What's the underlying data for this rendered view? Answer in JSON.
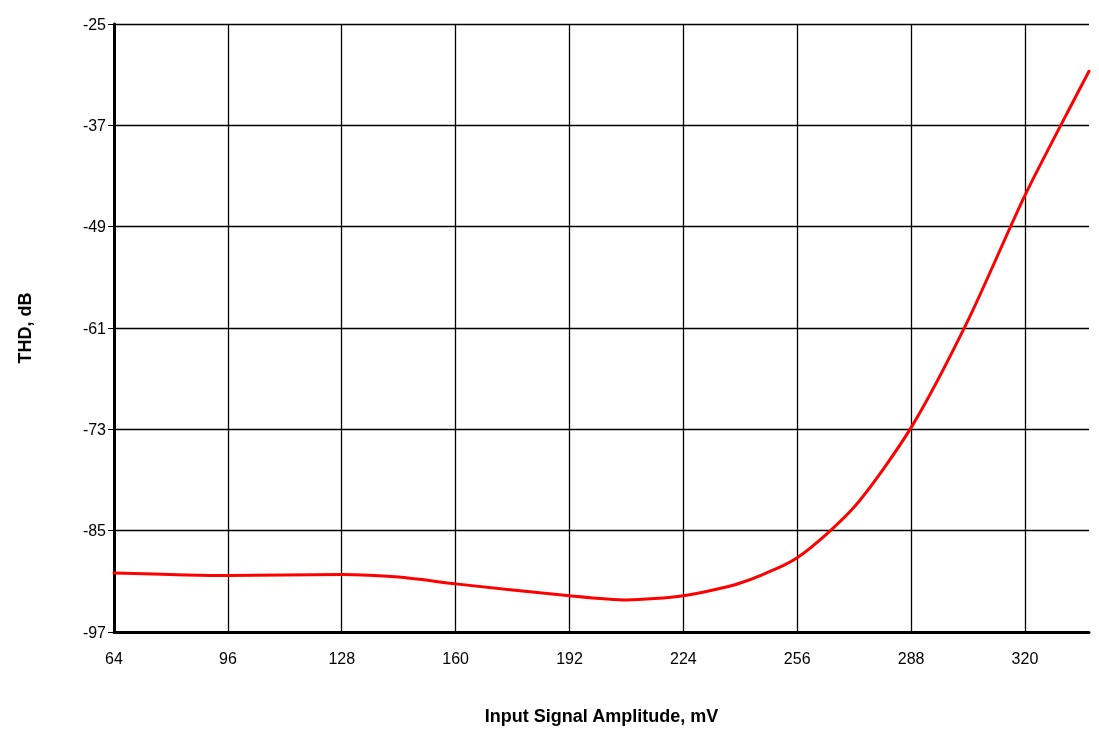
{
  "chart_data": {
    "type": "line",
    "xlabel": "Input Signal Amplitude, mV",
    "ylabel": "THD, dB",
    "xlim": [
      64,
      338
    ],
    "xticks": [
      64,
      96,
      128,
      160,
      192,
      224,
      256,
      288,
      320
    ],
    "ylim": [
      -97,
      -25
    ],
    "yticks": [
      -97,
      -85,
      -73,
      -61,
      -49,
      -37,
      -25
    ],
    "grid": true,
    "marker": "none",
    "line_style": "solid",
    "series": [
      {
        "color": "#ff0000",
        "x": [
          64,
          96,
          128,
          144,
          160,
          192,
          208,
          224,
          240,
          256,
          272,
          288,
          304,
          320,
          336,
          338
        ],
        "values": [
          -90,
          -90.3,
          -90.2,
          -90.5,
          -91.3,
          -92.7,
          -93.2,
          -92.7,
          -91.2,
          -88.2,
          -82.2,
          -72.8,
          -60.1,
          -45.3,
          -32.2,
          -30.6
        ]
      }
    ]
  }
}
